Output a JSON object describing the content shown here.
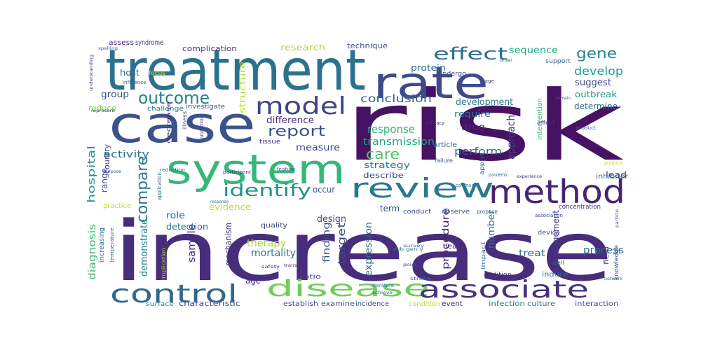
{
  "words": [
    {
      "text": "increase",
      "color": "#472d7b"
    },
    {
      "text": "risk",
      "color": "#471164"
    },
    {
      "text": "treatment",
      "color": "#2c728e"
    },
    {
      "text": "case",
      "color": "#3b528b"
    },
    {
      "text": "system",
      "color": "#35b779"
    },
    {
      "text": "rate",
      "color": "#3e4a89"
    },
    {
      "text": "review",
      "color": "#2a788e"
    },
    {
      "text": "method",
      "color": "#482475"
    },
    {
      "text": "control",
      "color": "#31688e"
    },
    {
      "text": "disease",
      "color": "#6ece58"
    },
    {
      "text": "associate",
      "color": "#46327e"
    },
    {
      "text": "model",
      "color": "#414487"
    },
    {
      "text": "effect",
      "color": "#2d708e"
    },
    {
      "text": "gene",
      "color": "#26828e"
    },
    {
      "text": "outcome",
      "color": "#277f8e"
    },
    {
      "text": "identify",
      "color": "#21918c"
    },
    {
      "text": "report",
      "color": "#3b528b"
    },
    {
      "text": "compare",
      "color": "#2a788e"
    },
    {
      "text": "care",
      "color": "#52c569"
    },
    {
      "text": "response",
      "color": "#2db27d"
    },
    {
      "text": "conclusion",
      "color": "#33638d"
    },
    {
      "text": "develop",
      "color": "#1f9e89"
    },
    {
      "text": "complication",
      "color": "#443983"
    },
    {
      "text": "research",
      "color": "#addc30"
    },
    {
      "text": "technique",
      "color": "#3e4a89"
    },
    {
      "text": "sequence",
      "color": "#22a884"
    },
    {
      "text": "approach",
      "color": "#443983"
    },
    {
      "text": "development",
      "color": "#2a788e"
    },
    {
      "text": "suggest",
      "color": "#3e4a89"
    },
    {
      "text": "outbreak",
      "color": "#1f9e89"
    },
    {
      "text": "determine",
      "color": "#2d708e"
    },
    {
      "text": "group",
      "color": "#3b528b"
    },
    {
      "text": "transmission",
      "color": "#20a486"
    },
    {
      "text": "difference",
      "color": "#472d7b"
    },
    {
      "text": "measure",
      "color": "#3f4788"
    },
    {
      "text": "perform",
      "color": "#33638d"
    },
    {
      "text": "activity",
      "color": "#2d708e"
    },
    {
      "text": "strategy",
      "color": "#2a788e"
    },
    {
      "text": "describe",
      "color": "#414487"
    },
    {
      "text": "hospital",
      "color": "#21918c"
    },
    {
      "text": "range",
      "color": "#3b528b"
    },
    {
      "text": "role",
      "color": "#31688e"
    },
    {
      "text": "detection",
      "color": "#2c728e"
    },
    {
      "text": "evidence",
      "color": "#c2df23"
    },
    {
      "text": "design",
      "color": "#3e4a89"
    },
    {
      "text": "term",
      "color": "#3b528b"
    },
    {
      "text": "number",
      "color": "#2a788e"
    },
    {
      "text": "diagnosis",
      "color": "#3dbc74"
    },
    {
      "text": "demonstrate",
      "color": "#26828e"
    },
    {
      "text": "sample",
      "color": "#482878"
    },
    {
      "text": "mechanism",
      "color": "#46327e"
    },
    {
      "text": "therapy",
      "color": "#a2da37"
    },
    {
      "text": "mortality",
      "color": "#2a788e"
    },
    {
      "text": "finding",
      "color": "#3b528b"
    },
    {
      "text": "target",
      "color": "#3e4a89"
    },
    {
      "text": "expression",
      "color": "#31688e"
    },
    {
      "text": "procedure",
      "color": "#482878"
    },
    {
      "text": "management",
      "color": "#453781"
    },
    {
      "text": "process",
      "color": "#2d708e"
    },
    {
      "text": "treat",
      "color": "#31688e"
    },
    {
      "text": "lead",
      "color": "#46327e"
    },
    {
      "text": "drug",
      "color": "#472d7b"
    },
    {
      "text": "require",
      "color": "#2a788e"
    },
    {
      "text": "host",
      "color": "#31688e"
    },
    {
      "text": "reduce",
      "color": "#73d056"
    },
    {
      "text": "structure",
      "color": "#b5de2b"
    },
    {
      "text": "protein",
      "color": "#31688e"
    },
    {
      "text": "age",
      "color": "#46327e"
    },
    {
      "text": "country",
      "color": "#46327e"
    },
    {
      "text": "characteristic",
      "color": "#3b528b"
    },
    {
      "text": "establish",
      "color": "#3e4a89"
    },
    {
      "text": "examine",
      "color": "#3b528b"
    },
    {
      "text": "incidence",
      "color": "#3b528b"
    },
    {
      "text": "event",
      "color": "#482475"
    },
    {
      "text": "infection",
      "color": "#2a788e"
    },
    {
      "text": "culture",
      "color": "#31688e"
    },
    {
      "text": "interaction",
      "color": "#3b528b"
    },
    {
      "text": "surface",
      "color": "#26828e"
    },
    {
      "text": "condition",
      "color": "#b8de29"
    },
    {
      "text": "occur",
      "color": "#3b528b"
    },
    {
      "text": "tissue",
      "color": "#46327e"
    },
    {
      "text": "investigate",
      "color": "#3b528b"
    },
    {
      "text": "challenge",
      "color": "#2c728e"
    },
    {
      "text": "focus",
      "color": "#d8e219"
    },
    {
      "text": "undergo",
      "color": "#3e4a89"
    },
    {
      "text": "assess",
      "color": "#482878"
    },
    {
      "text": "syndrome",
      "color": "#46327e"
    },
    {
      "text": "support",
      "color": "#31688e"
    },
    {
      "text": "quality",
      "color": "#3e4a89"
    },
    {
      "text": "ratio",
      "color": "#414487"
    },
    {
      "text": "death",
      "color": "#482475"
    },
    {
      "text": "device",
      "color": "#3b528b"
    },
    {
      "text": "induce",
      "color": "#2c728e"
    },
    {
      "text": "addition",
      "color": "#472d7b"
    },
    {
      "text": "conduct",
      "color": "#3e4a89"
    },
    {
      "text": "observe",
      "color": "#3b528b"
    },
    {
      "text": "propose",
      "color": "#3b528b"
    },
    {
      "text": "practice",
      "color": "#c2df23"
    },
    {
      "text": "concentration",
      "color": "#482878"
    },
    {
      "text": "increasing",
      "color": "#2c728e"
    },
    {
      "text": "article",
      "color": "#31688e"
    },
    {
      "text": "intervention",
      "color": "#3dbc74"
    },
    {
      "text": "efficacy",
      "color": "#46327e"
    },
    {
      "text": "impact",
      "color": "#2d708e"
    },
    {
      "text": "apply",
      "color": "#3e4a89"
    },
    {
      "text": "application",
      "color": "#2a788e"
    },
    {
      "text": "implication",
      "color": "#a5db36"
    },
    {
      "text": "illness",
      "color": "#3b528b"
    },
    {
      "text": "field",
      "color": "#453781"
    },
    {
      "text": "knowledge",
      "color": "#3e4a89"
    },
    {
      "text": "literature",
      "color": "#2a788e"
    },
    {
      "text": "cell",
      "color": "#2d708e"
    },
    {
      "text": "pandemic",
      "color": "#2c728e"
    },
    {
      "text": "failure",
      "color": "#3b528b"
    },
    {
      "text": "influence",
      "color": "#31688e"
    },
    {
      "text": "feature",
      "color": "#3b528b"
    },
    {
      "text": "participant",
      "color": "#46327e"
    },
    {
      "text": "reduction",
      "color": "#2c728e"
    },
    {
      "text": "production",
      "color": "#46327e"
    },
    {
      "text": "purpose",
      "color": "#3b528b"
    },
    {
      "text": "represent",
      "color": "#482878"
    },
    {
      "text": "understanding",
      "color": "#46327e"
    },
    {
      "text": "spelling",
      "color": "#2c728e"
    },
    {
      "text": "stage",
      "color": "#3e4a89"
    },
    {
      "text": "affect",
      "color": "#46327e"
    },
    {
      "text": "product",
      "color": "#31688e"
    },
    {
      "text": "produce",
      "color": "#b5de2b"
    },
    {
      "text": "inhibitor",
      "color": "#2a788e"
    },
    {
      "text": "domain",
      "color": "#3b528b"
    },
    {
      "text": "order",
      "color": "#2d708e"
    },
    {
      "text": "decrease",
      "color": "#482878"
    },
    {
      "text": "community",
      "color": "#2a788e"
    },
    {
      "text": "experience",
      "color": "#46327e"
    },
    {
      "text": "association",
      "color": "#3e4a89"
    },
    {
      "text": "temperature",
      "color": "#31688e"
    },
    {
      "text": "particle",
      "color": "#3b528b"
    },
    {
      "text": "network",
      "color": "#2c728e"
    },
    {
      "text": "response",
      "color": "#2c728e"
    },
    {
      "text": "safety",
      "color": "#46327e"
    },
    {
      "text": "point",
      "color": "#3e4a89"
    },
    {
      "text": "survey",
      "color": "#31688e"
    },
    {
      "text": "achieve",
      "color": "#3b528b"
    },
    {
      "text": "stroke",
      "color": "#2a788e"
    },
    {
      "text": "transition",
      "color": "#482878"
    },
    {
      "text": "sub gen y",
      "color": "#2c728e"
    }
  ]
}
